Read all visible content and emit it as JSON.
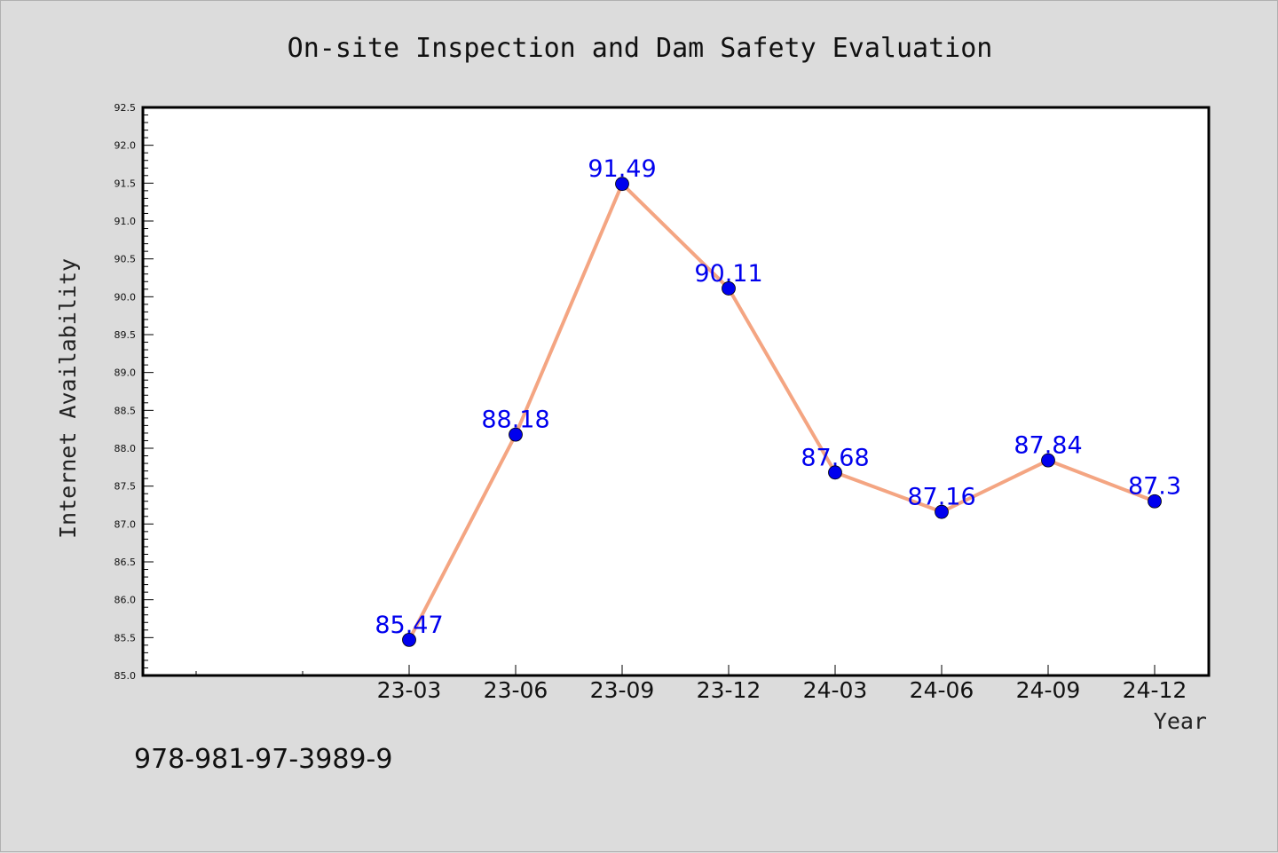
{
  "note": "978-981-97-3989-9",
  "chart_data": {
    "type": "line",
    "title": "On-site Inspection and Dam Safety Evaluation",
    "xlabel": "Year",
    "ylabel": "Internet Availability",
    "categories": [
      "23-03",
      "23-06",
      "23-09",
      "23-12",
      "24-03",
      "24-06",
      "24-09",
      "24-12"
    ],
    "series": [
      {
        "values": [
          85.47,
          88.18,
          91.49,
          90.11,
          87.68,
          87.16,
          87.84,
          87.3
        ],
        "labels": [
          "85.47",
          "88.18",
          "91.49",
          "90.11",
          "87.68",
          "87.16",
          "87.84",
          "87.3"
        ]
      }
    ],
    "ylim": [
      85.0,
      92.5
    ],
    "yticks": [
      "85.0",
      "85.5",
      "86.0",
      "86.5",
      "87.0",
      "87.5",
      "88.0",
      "88.5",
      "89.0",
      "89.5",
      "90.0",
      "90.5",
      "91.0",
      "91.5",
      "92.0",
      "92.5"
    ],
    "grid": false,
    "colors": {
      "line": "#f4a582",
      "marker": "#0000ee",
      "label": "#0000ee"
    }
  }
}
